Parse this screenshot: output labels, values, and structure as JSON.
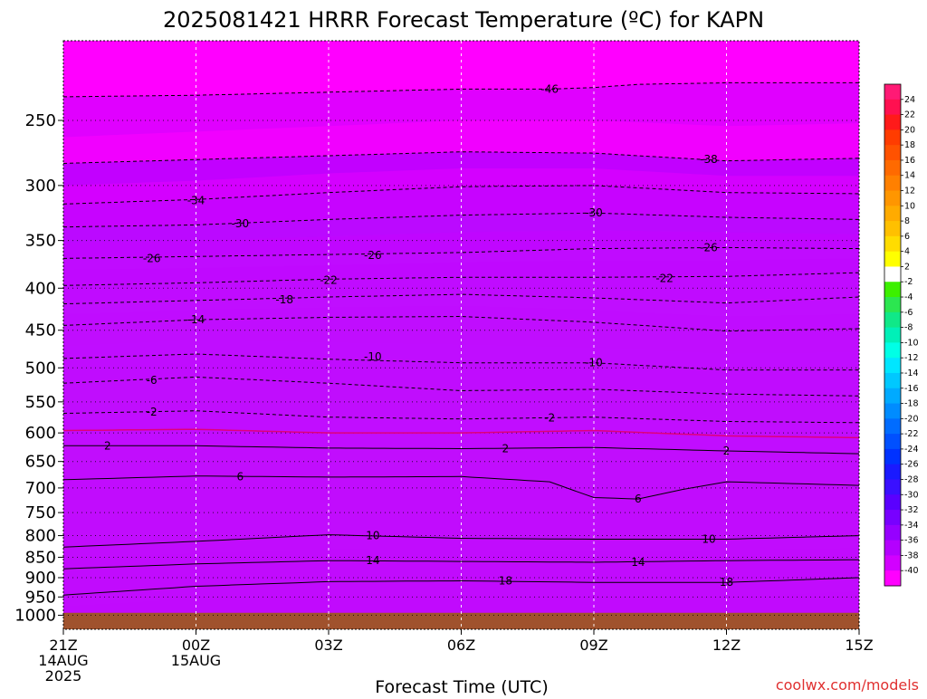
{
  "chart_data": {
    "type": "heatmap",
    "title": "2025081421 HRRR Forecast Temperature (ºC) for KAPN",
    "xlabel": "Forecast Time (UTC)",
    "ylabel": "",
    "credit": "coolwx.com/models",
    "x_ticks": [
      {
        "hour": 0,
        "lines": [
          "21Z",
          "14AUG",
          "2025"
        ]
      },
      {
        "hour": 3,
        "lines": [
          "00Z",
          "15AUG"
        ]
      },
      {
        "hour": 6,
        "lines": [
          "03Z"
        ]
      },
      {
        "hour": 9,
        "lines": [
          "06Z"
        ]
      },
      {
        "hour": 12,
        "lines": [
          "09Z"
        ]
      },
      {
        "hour": 15,
        "lines": [
          "12Z"
        ]
      },
      {
        "hour": 18,
        "lines": [
          "15Z"
        ]
      }
    ],
    "x_range_hours": [
      0,
      18
    ],
    "y_ticks_hpa": [
      250,
      300,
      350,
      400,
      450,
      500,
      550,
      600,
      650,
      700,
      750,
      800,
      850,
      900,
      950,
      1000
    ],
    "y_range_hpa": [
      200,
      1040
    ],
    "y_scale": "log-pressure",
    "ground_level_hpa": 993,
    "colorbar": {
      "labels": [
        "24",
        "22",
        "20",
        "18",
        "16",
        "14",
        "12",
        "10",
        "8",
        "6",
        "4",
        "2",
        "-2",
        "-4",
        "-6",
        "-8",
        "-10",
        "-12",
        "-14",
        "-16",
        "-18",
        "-20",
        "-22",
        "-24",
        "-26",
        "-28",
        "-30",
        "-32",
        "-34",
        "-36",
        "-38",
        "-40"
      ],
      "colors": [
        "#ff1a75",
        "#ff1050",
        "#ff1a1a",
        "#ff3c00",
        "#ff5200",
        "#ff6a00",
        "#ff8000",
        "#ff9600",
        "#ffab00",
        "#ffc000",
        "#ffdc00",
        "#ffff00",
        "#ffffff",
        "#3cf000",
        "#2ce650",
        "#10e888",
        "#00f0b8",
        "#00ffe6",
        "#00e6ff",
        "#00c8ff",
        "#00aaff",
        "#008cff",
        "#006cff",
        "#0050ff",
        "#0032ff",
        "#1a1aff",
        "#3a10ff",
        "#5a00ff",
        "#7800ff",
        "#9600ff",
        "#b400ff",
        "#d200ff",
        "#ff00ff"
      ]
    },
    "isotherms": [
      {
        "label": "-46",
        "style": "dashed",
        "points": [
          [
            0,
            234
          ],
          [
            3,
            233
          ],
          [
            6,
            231
          ],
          [
            9,
            229
          ],
          [
            11,
            229
          ],
          [
            12,
            228
          ],
          [
            13,
            226
          ],
          [
            15,
            225
          ],
          [
            16,
            225
          ],
          [
            18,
            225
          ]
        ],
        "label_at": 11
      },
      {
        "label": "-38",
        "style": "dashed",
        "points": [
          [
            0,
            282
          ],
          [
            3,
            279
          ],
          [
            6,
            276
          ],
          [
            9,
            273
          ],
          [
            12,
            274
          ],
          [
            15,
            280
          ],
          [
            18,
            278
          ]
        ],
        "label_at": 14.6
      },
      {
        "label": "-34",
        "style": "dashed",
        "points": [
          [
            0,
            316
          ],
          [
            3,
            312
          ],
          [
            6,
            306
          ],
          [
            9,
            301
          ],
          [
            12,
            300
          ],
          [
            15,
            306
          ],
          [
            18,
            307
          ]
        ],
        "label_at": 3
      },
      {
        "label": "-30",
        "style": "dashed",
        "points": [
          [
            0,
            337
          ],
          [
            3,
            335
          ],
          [
            6,
            330
          ],
          [
            9,
            326
          ],
          [
            12,
            324
          ],
          [
            15,
            328
          ],
          [
            18,
            330
          ]
        ],
        "label_at": 4
      },
      {
        "label": "-26",
        "style": "dashed",
        "points": [
          [
            0,
            368
          ],
          [
            3,
            366
          ],
          [
            6,
            364
          ],
          [
            9,
            362
          ],
          [
            12,
            358
          ],
          [
            15,
            357
          ],
          [
            18,
            358
          ]
        ],
        "label_at": 2
      },
      {
        "label": "-22",
        "style": "dashed",
        "points": [
          [
            0,
            397
          ],
          [
            3,
            394
          ],
          [
            6,
            390
          ],
          [
            9,
            388
          ],
          [
            12,
            388
          ],
          [
            15,
            387
          ],
          [
            18,
            383
          ]
        ],
        "label_at": 6
      },
      {
        "label": "-18",
        "style": "dashed",
        "points": [
          [
            0,
            418
          ],
          [
            3,
            414
          ],
          [
            6,
            410
          ],
          [
            9,
            407
          ],
          [
            12,
            411
          ],
          [
            15,
            417
          ],
          [
            18,
            410
          ]
        ],
        "label_at": 5
      },
      {
        "label": "-14",
        "style": "dashed",
        "points": [
          [
            0,
            444
          ],
          [
            3,
            437
          ],
          [
            6,
            434
          ],
          [
            9,
            433
          ],
          [
            12,
            440
          ],
          [
            15,
            451
          ],
          [
            18,
            448
          ]
        ],
        "label_at": 3
      },
      {
        "label": "-10",
        "style": "dashed",
        "points": [
          [
            0,
            487
          ],
          [
            3,
            481
          ],
          [
            6,
            488
          ],
          [
            9,
            493
          ],
          [
            12,
            493
          ],
          [
            15,
            503
          ],
          [
            18,
            503
          ]
        ],
        "label_at": 7
      },
      {
        "label": "-6",
        "style": "dashed",
        "points": [
          [
            0,
            522
          ],
          [
            3,
            513
          ],
          [
            6,
            522
          ],
          [
            9,
            533
          ],
          [
            12,
            531
          ],
          [
            15,
            538
          ],
          [
            18,
            541
          ]
        ],
        "label_at": 2
      },
      {
        "label": "-2",
        "style": "dashed",
        "points": [
          [
            0,
            568
          ],
          [
            3,
            564
          ],
          [
            6,
            574
          ],
          [
            9,
            577
          ],
          [
            12,
            574
          ],
          [
            15,
            581
          ],
          [
            18,
            583
          ]
        ],
        "label_at": 2
      },
      {
        "label": "2",
        "style": "solid",
        "points": [
          [
            0,
            622
          ],
          [
            3,
            622
          ],
          [
            6,
            626
          ],
          [
            9,
            627
          ],
          [
            12,
            625
          ],
          [
            15,
            631
          ],
          [
            18,
            636
          ]
        ],
        "label_at": 1
      },
      {
        "label": "6",
        "style": "solid",
        "points": [
          [
            0,
            684
          ],
          [
            3,
            677
          ],
          [
            6,
            679
          ],
          [
            9,
            678
          ],
          [
            11,
            688
          ],
          [
            12,
            719
          ],
          [
            13,
            722
          ],
          [
            14,
            703
          ],
          [
            15,
            688
          ],
          [
            18,
            695
          ]
        ],
        "label_at": 4
      },
      {
        "label": "10",
        "style": "solid",
        "points": [
          [
            0,
            826
          ],
          [
            3,
            813
          ],
          [
            6,
            798
          ],
          [
            9,
            806
          ],
          [
            12,
            808
          ],
          [
            15,
            808
          ],
          [
            18,
            800
          ]
        ],
        "label_at": 7
      },
      {
        "label": "14",
        "style": "solid",
        "points": [
          [
            0,
            878
          ],
          [
            3,
            866
          ],
          [
            6,
            858
          ],
          [
            9,
            860
          ],
          [
            12,
            862
          ],
          [
            15,
            858
          ],
          [
            18,
            856
          ]
        ],
        "label_at": 7
      },
      {
        "label": "18",
        "style": "solid",
        "points": [
          [
            0,
            945
          ],
          [
            3,
            922
          ],
          [
            6,
            910
          ],
          [
            9,
            908
          ],
          [
            12,
            912
          ],
          [
            15,
            912
          ],
          [
            18,
            900
          ]
        ],
        "label_at": 10
      }
    ],
    "zero_isotherm": {
      "style": "solid-magenta",
      "points": [
        [
          0,
          596
        ],
        [
          3,
          594
        ],
        [
          6,
          600
        ],
        [
          9,
          600
        ],
        [
          12,
          596
        ],
        [
          15,
          605
        ],
        [
          18,
          608
        ]
      ]
    },
    "isotherm_labels": [
      {
        "text": "-46",
        "hour": 11,
        "hpa": 229
      },
      {
        "text": "-38",
        "hour": 14.6,
        "hpa": 279
      },
      {
        "text": "-34",
        "hour": 3,
        "hpa": 313
      },
      {
        "text": "-30",
        "hour": 4,
        "hpa": 334
      },
      {
        "text": "-30",
        "hour": 12,
        "hpa": 324
      },
      {
        "text": "-26",
        "hour": 2,
        "hpa": 368
      },
      {
        "text": "-26",
        "hour": 7,
        "hpa": 365
      },
      {
        "text": "-26",
        "hour": 14.6,
        "hpa": 357
      },
      {
        "text": "-22",
        "hour": 6,
        "hpa": 391
      },
      {
        "text": "-22",
        "hour": 13.6,
        "hpa": 389
      },
      {
        "text": "-18",
        "hour": 5,
        "hpa": 413
      },
      {
        "text": "-14",
        "hour": 3,
        "hpa": 437
      },
      {
        "text": "-10",
        "hour": 7,
        "hpa": 485
      },
      {
        "text": "-10",
        "hour": 12,
        "hpa": 493
      },
      {
        "text": "-6",
        "hour": 2,
        "hpa": 518
      },
      {
        "text": "-2",
        "hour": 2,
        "hpa": 566
      },
      {
        "text": "-2",
        "hour": 11,
        "hpa": 575
      },
      {
        "text": "2",
        "hour": 1,
        "hpa": 622
      },
      {
        "text": "2",
        "hour": 10,
        "hpa": 627
      },
      {
        "text": "2",
        "hour": 15,
        "hpa": 631
      },
      {
        "text": "6",
        "hour": 4,
        "hpa": 678
      },
      {
        "text": "6",
        "hour": 13,
        "hpa": 722
      },
      {
        "text": "10",
        "hour": 7,
        "hpa": 800
      },
      {
        "text": "10",
        "hour": 14.6,
        "hpa": 808
      },
      {
        "text": "14",
        "hour": 7,
        "hpa": 858
      },
      {
        "text": "14",
        "hour": 13,
        "hpa": 862
      },
      {
        "text": "18",
        "hour": 10,
        "hpa": 908
      },
      {
        "text": "18",
        "hour": 15,
        "hpa": 912
      }
    ],
    "grid": true
  }
}
